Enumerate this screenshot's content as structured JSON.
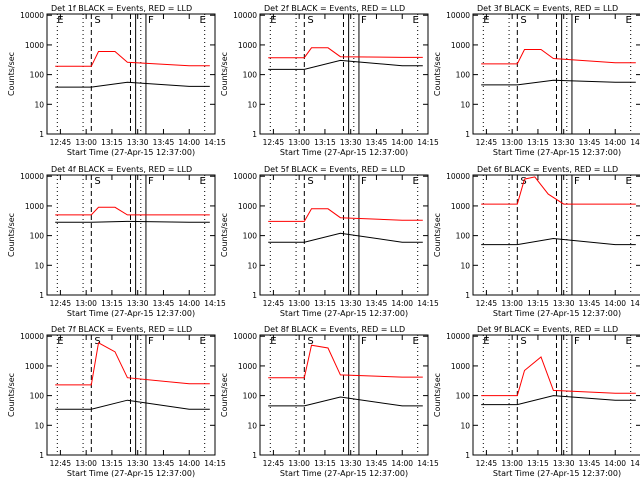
{
  "chart_data": [
    {
      "type": "line",
      "title": "Det 1f BLACK = Events, RED = LLD",
      "xlabel": "Start Time (27-Apr-15 12:37:00)",
      "ylabel": "Counts/sec",
      "xticks": [
        "12:45",
        "13:00",
        "13:15",
        "13:30",
        "13:45",
        "14:00",
        "14:15"
      ],
      "yticks": [
        "1",
        "10",
        "100",
        "1000",
        "10000"
      ],
      "ylim": [
        1,
        11000
      ],
      "markers": [
        "E",
        "S",
        "F",
        "E"
      ],
      "series": [
        {
          "color": "#ff0000",
          "values": [
            [
              12.7,
              190
            ],
            [
              13.05,
              190
            ],
            [
              13.12,
              600
            ],
            [
              13.28,
              600
            ],
            [
              13.4,
              260
            ],
            [
              14.0,
              200
            ],
            [
              14.2,
              200
            ]
          ]
        },
        {
          "color": "#000000",
          "values": [
            [
              12.7,
              38
            ],
            [
              13.05,
              38
            ],
            [
              13.4,
              55
            ],
            [
              14.0,
              40
            ],
            [
              14.2,
              40
            ]
          ]
        }
      ]
    },
    {
      "type": "line",
      "title": "Det 2f BLACK = Events, RED = LLD",
      "xlabel": "Start Time (27-Apr-15 12:37:00)",
      "ylabel": "Counts/sec",
      "xticks": [
        "12:45",
        "13:00",
        "13:15",
        "13:30",
        "13:45",
        "14:00",
        "14:15"
      ],
      "yticks": [
        "1",
        "10",
        "100",
        "1000",
        "10000"
      ],
      "ylim": [
        1,
        11000
      ],
      "markers": [
        "E",
        "S",
        "F",
        "E"
      ],
      "series": [
        {
          "color": "#ff0000",
          "values": [
            [
              12.7,
              370
            ],
            [
              13.05,
              370
            ],
            [
              13.12,
              800
            ],
            [
              13.28,
              800
            ],
            [
              13.4,
              400
            ],
            [
              14.0,
              380
            ],
            [
              14.2,
              380
            ]
          ]
        },
        {
          "color": "#000000",
          "values": [
            [
              12.7,
              150
            ],
            [
              13.05,
              150
            ],
            [
              13.4,
              300
            ],
            [
              14.0,
              200
            ],
            [
              14.2,
              200
            ]
          ]
        }
      ]
    },
    {
      "type": "line",
      "title": "Det 3f BLACK = Events, RED = LLD",
      "xlabel": "Start Time (27-Apr-15 12:37:00)",
      "ylabel": "Counts/sec",
      "xticks": [
        "12:45",
        "13:00",
        "13:15",
        "13:30",
        "13:45",
        "14:00",
        "14:15"
      ],
      "yticks": [
        "1",
        "10",
        "100",
        "1000",
        "10000"
      ],
      "ylim": [
        1,
        11000
      ],
      "markers": [
        "E",
        "S",
        "F",
        "E"
      ],
      "series": [
        {
          "color": "#ff0000",
          "values": [
            [
              12.7,
              230
            ],
            [
              13.05,
              230
            ],
            [
              13.12,
              700
            ],
            [
              13.28,
              700
            ],
            [
              13.4,
              350
            ],
            [
              14.0,
              250
            ],
            [
              14.2,
              250
            ]
          ]
        },
        {
          "color": "#000000",
          "values": [
            [
              12.7,
              45
            ],
            [
              13.05,
              45
            ],
            [
              13.4,
              65
            ],
            [
              14.0,
              55
            ],
            [
              14.2,
              55
            ]
          ]
        }
      ]
    },
    {
      "type": "line",
      "title": "Det 4f BLACK = Events, RED = LLD",
      "xlabel": "Start Time (27-Apr-15 12:37:00)",
      "ylabel": "Counts/sec",
      "xticks": [
        "12:45",
        "13:00",
        "13:15",
        "13:30",
        "13:45",
        "14:00",
        "14:15"
      ],
      "yticks": [
        "1",
        "10",
        "100",
        "1000",
        "10000"
      ],
      "ylim": [
        1,
        11000
      ],
      "markers": [
        "S",
        "F",
        "E"
      ],
      "series": [
        {
          "color": "#ff0000",
          "values": [
            [
              12.7,
              500
            ],
            [
              13.05,
              500
            ],
            [
              13.12,
              900
            ],
            [
              13.28,
              900
            ],
            [
              13.4,
              500
            ],
            [
              14.0,
              500
            ],
            [
              14.2,
              500
            ]
          ]
        },
        {
          "color": "#000000",
          "values": [
            [
              12.7,
              280
            ],
            [
              13.05,
              280
            ],
            [
              13.4,
              300
            ],
            [
              14.0,
              280
            ],
            [
              14.2,
              280
            ]
          ]
        }
      ]
    },
    {
      "type": "line",
      "title": "Det 5f BLACK = Events, RED = LLD",
      "xlabel": "Start Time (27-Apr-15 12:37:00)",
      "ylabel": "Counts/sec",
      "xticks": [
        "12:45",
        "13:00",
        "13:15",
        "13:30",
        "13:45",
        "14:00",
        "14:15"
      ],
      "yticks": [
        "1",
        "10",
        "100",
        "1000",
        "10000"
      ],
      "ylim": [
        1,
        11000
      ],
      "markers": [
        "S",
        "F",
        "E"
      ],
      "series": [
        {
          "color": "#ff0000",
          "values": [
            [
              12.7,
              300
            ],
            [
              13.05,
              300
            ],
            [
              13.12,
              800
            ],
            [
              13.28,
              800
            ],
            [
              13.4,
              400
            ],
            [
              14.0,
              330
            ],
            [
              14.2,
              330
            ]
          ]
        },
        {
          "color": "#000000",
          "values": [
            [
              12.7,
              60
            ],
            [
              13.05,
              60
            ],
            [
              13.4,
              120
            ],
            [
              14.0,
              60
            ],
            [
              14.2,
              60
            ]
          ]
        }
      ]
    },
    {
      "type": "line",
      "title": "Det 6f BLACK = Events, RED = LLD",
      "xlabel": "Start Time (27-Apr-15 12:37:00)",
      "ylabel": "Counts/sec",
      "xticks": [
        "12:45",
        "13:00",
        "13:15",
        "13:30",
        "13:45",
        "14:00",
        "14:15"
      ],
      "yticks": [
        "1",
        "10",
        "100",
        "1000",
        "10000"
      ],
      "ylim": [
        1,
        11000
      ],
      "markers": [
        "S",
        "F",
        "E"
      ],
      "series": [
        {
          "color": "#ff0000",
          "values": [
            [
              12.7,
              1150
            ],
            [
              13.05,
              1150
            ],
            [
              13.12,
              8000
            ],
            [
              13.22,
              9500
            ],
            [
              13.35,
              2500
            ],
            [
              13.5,
              1150
            ],
            [
              14.2,
              1150
            ]
          ]
        },
        {
          "color": "#000000",
          "values": [
            [
              12.7,
              50
            ],
            [
              13.05,
              50
            ],
            [
              13.4,
              80
            ],
            [
              14.0,
              50
            ],
            [
              14.2,
              50
            ]
          ]
        }
      ]
    },
    {
      "type": "line",
      "title": "Det 7f BLACK = Events, RED = LLD",
      "xlabel": "Start Time (27-Apr-15 12:37:00)",
      "ylabel": "Counts/sec",
      "xticks": [
        "12:45",
        "13:00",
        "13:15",
        "13:30",
        "13:45",
        "14:00",
        "14:15"
      ],
      "yticks": [
        "1",
        "10",
        "100",
        "1000",
        "10000"
      ],
      "ylim": [
        1,
        11000
      ],
      "markers": [
        "E",
        "S",
        "F",
        "E"
      ],
      "series": [
        {
          "color": "#ff0000",
          "values": [
            [
              12.7,
              230
            ],
            [
              13.05,
              230
            ],
            [
              13.12,
              6000
            ],
            [
              13.28,
              3000
            ],
            [
              13.4,
              400
            ],
            [
              14.0,
              250
            ],
            [
              14.2,
              250
            ]
          ]
        },
        {
          "color": "#000000",
          "values": [
            [
              12.7,
              35
            ],
            [
              13.05,
              35
            ],
            [
              13.4,
              70
            ],
            [
              14.0,
              35
            ],
            [
              14.2,
              35
            ]
          ]
        }
      ]
    },
    {
      "type": "line",
      "title": "Det 8f BLACK = Events, RED = LLD",
      "xlabel": "Start Time (27-Apr-15 12:37:00)",
      "ylabel": "Counts/sec",
      "xticks": [
        "12:45",
        "13:00",
        "13:15",
        "13:30",
        "13:45",
        "14:00",
        "14:15"
      ],
      "yticks": [
        "1",
        "10",
        "100",
        "1000",
        "10000"
      ],
      "ylim": [
        1,
        11000
      ],
      "markers": [
        "E",
        "S",
        "F",
        "E"
      ],
      "series": [
        {
          "color": "#ff0000",
          "values": [
            [
              12.7,
              400
            ],
            [
              13.05,
              400
            ],
            [
              13.12,
              5000
            ],
            [
              13.28,
              4000
            ],
            [
              13.4,
              500
            ],
            [
              14.0,
              420
            ],
            [
              14.2,
              420
            ]
          ]
        },
        {
          "color": "#000000",
          "values": [
            [
              12.7,
              45
            ],
            [
              13.05,
              45
            ],
            [
              13.4,
              90
            ],
            [
              14.0,
              45
            ],
            [
              14.2,
              45
            ]
          ]
        }
      ]
    },
    {
      "type": "line",
      "title": "Det 9f BLACK = Events, RED = LLD",
      "xlabel": "Start Time (27-Apr-15 12:37:00)",
      "ylabel": "Counts/sec",
      "xticks": [
        "12:45",
        "13:00",
        "13:15",
        "13:30",
        "13:45",
        "14:00",
        "14:15"
      ],
      "yticks": [
        "1",
        "10",
        "100",
        "1000",
        "10000"
      ],
      "ylim": [
        1,
        11000
      ],
      "markers": [
        "E",
        "S",
        "F",
        "E"
      ],
      "series": [
        {
          "color": "#ff0000",
          "values": [
            [
              12.7,
              100
            ],
            [
              13.05,
              100
            ],
            [
              13.12,
              700
            ],
            [
              13.28,
              2000
            ],
            [
              13.4,
              150
            ],
            [
              14.0,
              120
            ],
            [
              14.2,
              120
            ]
          ]
        },
        {
          "color": "#000000",
          "values": [
            [
              12.7,
              50
            ],
            [
              13.05,
              50
            ],
            [
              13.4,
              100
            ],
            [
              14.0,
              70
            ],
            [
              14.2,
              70
            ]
          ]
        }
      ]
    }
  ]
}
